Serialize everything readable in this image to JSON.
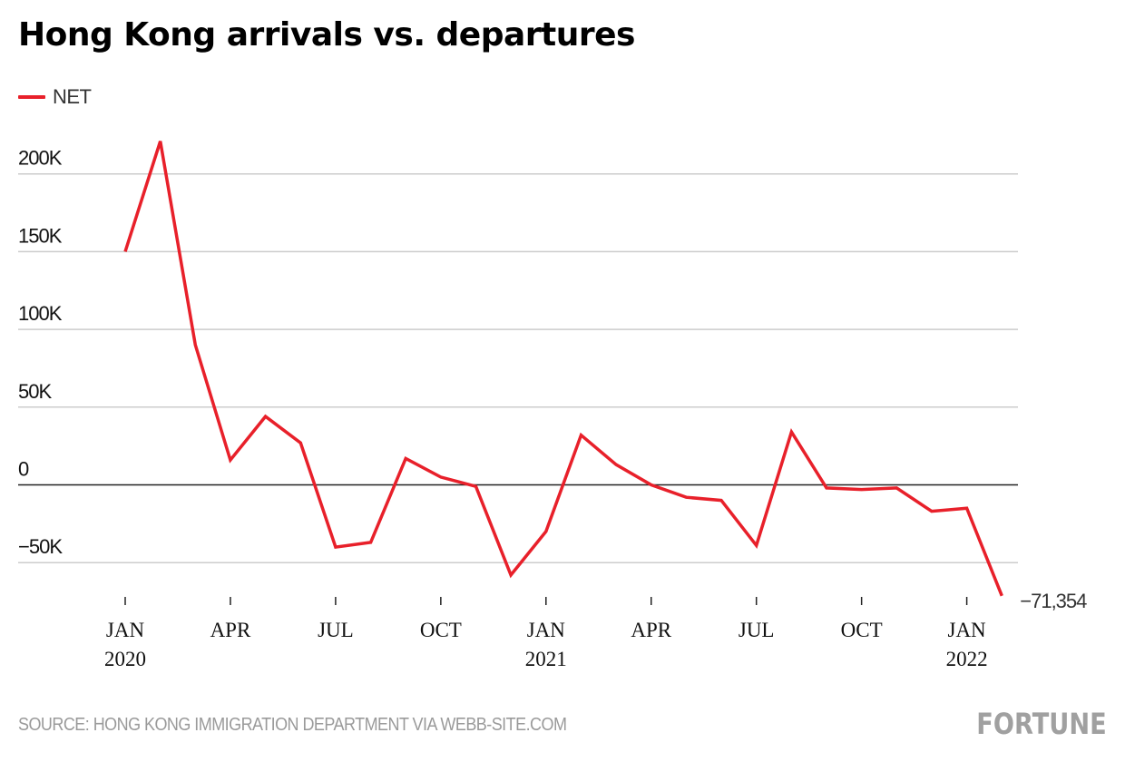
{
  "header": {
    "title": "Hong Kong arrivals vs. departures"
  },
  "legend": {
    "items": [
      {
        "label": "NET",
        "color": "#e8202a"
      }
    ]
  },
  "footer": {
    "source": "SOURCE: HONG KONG IMMIGRATION DEPARTMENT VIA WEBB-SITE.COM",
    "brand": "FORTUNE"
  },
  "chart_data": {
    "type": "line",
    "title": "Hong Kong arrivals vs. departures",
    "xlabel": "",
    "ylabel": "",
    "ylim": [
      -71354,
      225000
    ],
    "grid": true,
    "legend_position": "top-left",
    "y_ticks": [
      {
        "value": 200000,
        "label": "200K"
      },
      {
        "value": 150000,
        "label": "150K"
      },
      {
        "value": 100000,
        "label": "100K"
      },
      {
        "value": 50000,
        "label": "50K"
      },
      {
        "value": 0,
        "label": "0"
      },
      {
        "value": -50000,
        "label": "−50K"
      }
    ],
    "x_ticks": [
      {
        "index": 0,
        "label": "JAN",
        "sublabel": "2020"
      },
      {
        "index": 3,
        "label": "APR",
        "sublabel": ""
      },
      {
        "index": 6,
        "label": "JUL",
        "sublabel": ""
      },
      {
        "index": 9,
        "label": "OCT",
        "sublabel": ""
      },
      {
        "index": 12,
        "label": "JAN",
        "sublabel": "2021"
      },
      {
        "index": 15,
        "label": "APR",
        "sublabel": ""
      },
      {
        "index": 18,
        "label": "JUL",
        "sublabel": ""
      },
      {
        "index": 21,
        "label": "OCT",
        "sublabel": ""
      },
      {
        "index": 24,
        "label": "JAN",
        "sublabel": "2022"
      }
    ],
    "x": [
      "2020-01",
      "2020-02",
      "2020-03",
      "2020-04",
      "2020-05",
      "2020-06",
      "2020-07",
      "2020-08",
      "2020-09",
      "2020-10",
      "2020-11",
      "2020-12",
      "2021-01",
      "2021-02",
      "2021-03",
      "2021-04",
      "2021-05",
      "2021-06",
      "2021-07",
      "2021-08",
      "2021-09",
      "2021-10",
      "2021-11",
      "2021-12",
      "2022-01",
      "2022-02"
    ],
    "series": [
      {
        "name": "NET",
        "color": "#e8202a",
        "values": [
          150000,
          221000,
          90000,
          16000,
          44000,
          27000,
          -40000,
          -37000,
          17000,
          5000,
          -1000,
          -58000,
          -30000,
          32000,
          13000,
          0,
          -8000,
          -10000,
          -39000,
          34000,
          -2000,
          -3000,
          -2000,
          -17000,
          -15000,
          -71354
        ]
      }
    ],
    "annotations": [
      {
        "index": 25,
        "text": "−71,354"
      }
    ]
  }
}
